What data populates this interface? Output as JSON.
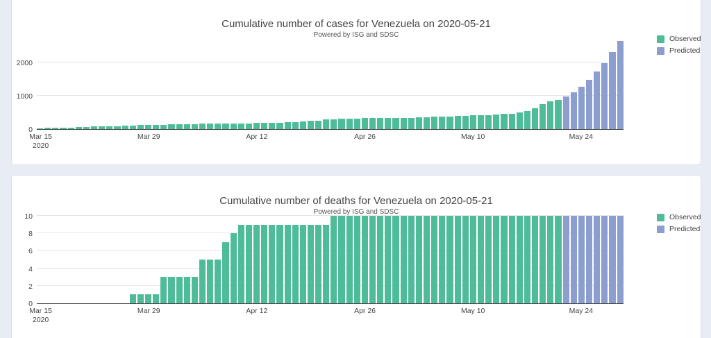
{
  "colors": {
    "observed": "#4ebc98",
    "predicted": "#8c9ed0",
    "text": "#444444",
    "grid": "#e6e6e6",
    "axis": "#444444",
    "page_background": "#e8ecf3",
    "card_background": "#ffffff"
  },
  "legend": {
    "items": [
      {
        "label": "Observed",
        "color_key": "observed"
      },
      {
        "label": "Predicted",
        "color_key": "predicted"
      }
    ]
  },
  "chart_data": [
    {
      "type": "bar",
      "title": "Cumulative number of cases for Venezuela on 2020-05-21",
      "subtitle": "Powered by ISG and SDSC",
      "x": {
        "start": "2020-03-15",
        "end": "2020-05-29",
        "freq": "daily"
      },
      "series": [
        {
          "name": "Observed",
          "date_range": "2020-03-15 to 2020-05-21",
          "values": [
            17,
            33,
            36,
            42,
            42,
            70,
            70,
            77,
            77,
            84,
            91,
            107,
            107,
            119,
            119,
            135,
            135,
            143,
            146,
            153,
            155,
            159,
            165,
            165,
            167,
            171,
            171,
            175,
            181,
            189,
            193,
            197,
            204,
            204,
            227,
            256,
            256,
            288,
            288,
            311,
            318,
            323,
            325,
            329,
            329,
            331,
            333,
            335,
            335,
            357,
            361,
            379,
            381,
            381,
            388,
            396,
            414,
            422,
            423,
            440,
            455,
            459,
            504,
            541,
            618,
            749,
            824,
            882
          ]
        },
        {
          "name": "Predicted",
          "date_range": "2020-05-22 to 2020-05-29",
          "values": [
            980,
            1100,
            1265,
            1480,
            1735,
            1980,
            2305,
            2650
          ]
        }
      ],
      "y_ticks": [
        0,
        1000,
        2000
      ],
      "ylim": [
        0,
        2750
      ],
      "x_ticks": [
        {
          "label": "Mar 15",
          "sublabel": "2020",
          "day_index": 0
        },
        {
          "label": "Mar 29",
          "day_index": 14
        },
        {
          "label": "Apr 12",
          "day_index": 28
        },
        {
          "label": "Apr 26",
          "day_index": 42
        },
        {
          "label": "May 10",
          "day_index": 56
        },
        {
          "label": "May 24",
          "day_index": 70
        }
      ],
      "legend_entries": [
        "Observed",
        "Predicted"
      ],
      "legend_position": "right-top",
      "grid": true
    },
    {
      "type": "bar",
      "title": "Cumulative number of deaths for Venezuela on 2020-05-21",
      "subtitle": "Powered by ISG and SDSC",
      "x": {
        "start": "2020-03-15",
        "end": "2020-05-29",
        "freq": "daily"
      },
      "series": [
        {
          "name": "Observed",
          "date_range": "2020-03-15 to 2020-05-21",
          "values": [
            0,
            0,
            0,
            0,
            0,
            0,
            0,
            0,
            0,
            0,
            0,
            0,
            1,
            1,
            1,
            1,
            3,
            3,
            3,
            3,
            3,
            5,
            5,
            5,
            7,
            8,
            9,
            9,
            9,
            9,
            9,
            9,
            9,
            9,
            9,
            9,
            9,
            9,
            10,
            10,
            10,
            10,
            10,
            10,
            10,
            10,
            10,
            10,
            10,
            10,
            10,
            10,
            10,
            10,
            10,
            10,
            10,
            10,
            10,
            10,
            10,
            10,
            10,
            10,
            10,
            10,
            10,
            10
          ]
        },
        {
          "name": "Predicted",
          "date_range": "2020-05-22 to 2020-05-29",
          "values": [
            10,
            10,
            10,
            10,
            10,
            10,
            10,
            10
          ]
        }
      ],
      "y_ticks": [
        0,
        2,
        4,
        6,
        8,
        10
      ],
      "ylim": [
        0,
        10
      ],
      "x_ticks": [
        {
          "label": "Mar 15",
          "sublabel": "2020",
          "day_index": 0
        },
        {
          "label": "Mar 29",
          "day_index": 14
        },
        {
          "label": "Apr 12",
          "day_index": 28
        },
        {
          "label": "Apr 26",
          "day_index": 42
        },
        {
          "label": "May 10",
          "day_index": 56
        },
        {
          "label": "May 24",
          "day_index": 70
        }
      ],
      "legend_entries": [
        "Observed",
        "Predicted"
      ],
      "legend_position": "right-top",
      "grid": true
    }
  ]
}
